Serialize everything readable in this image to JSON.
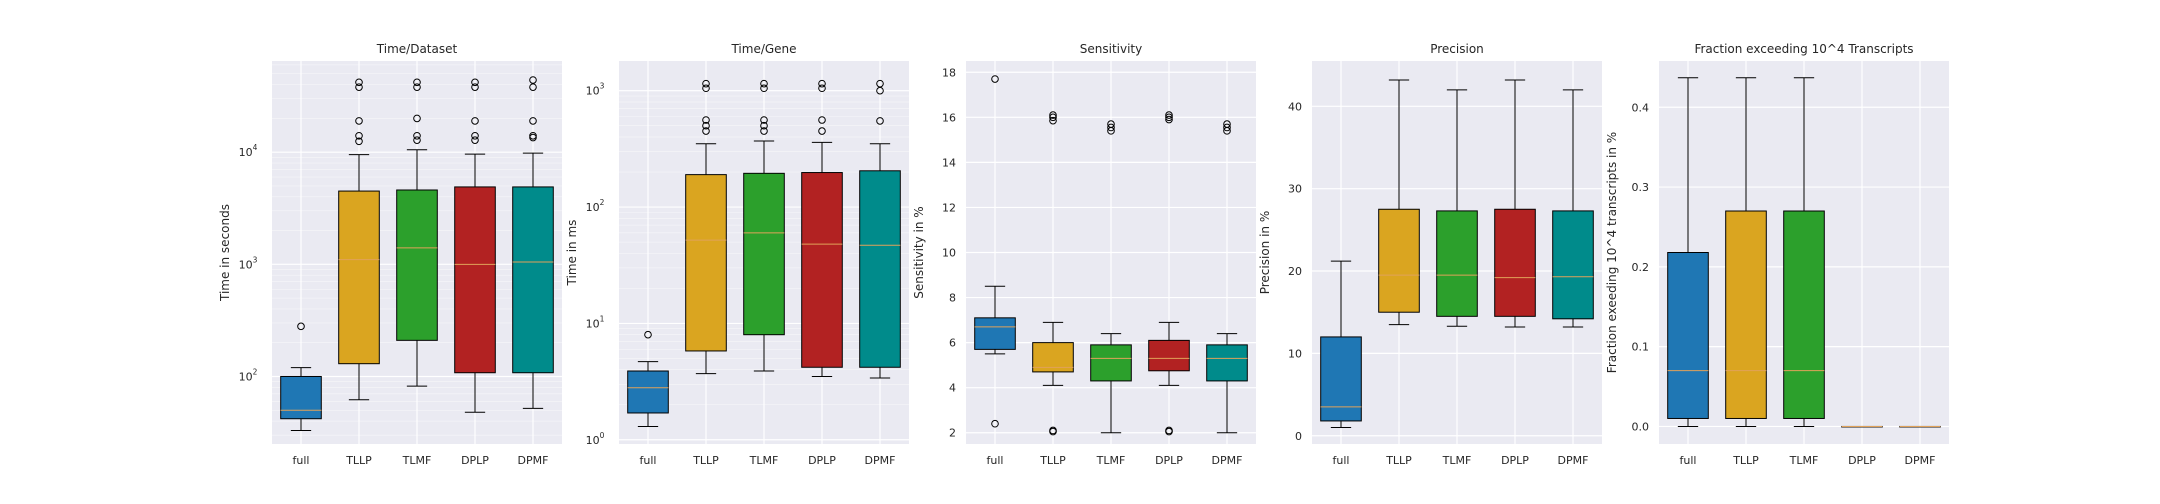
{
  "figure": {
    "background": "#ffffff",
    "plot_background": "#eaeaf2",
    "grid_color": "#ffffff",
    "median_color": "#e0a25a"
  },
  "chart_data": [
    {
      "type": "box",
      "title": "Time/Dataset",
      "xlabel": "",
      "ylabel": "Time in seconds",
      "yscale": "log",
      "ylim": [
        25,
        65000
      ],
      "grid": true,
      "categories": [
        "full",
        "TLLP",
        "TLMF",
        "DPLP",
        "DPMF"
      ],
      "colors": [
        "#1f77b4",
        "#daa520",
        "#2ca02c",
        "#b22222",
        "#008b8b"
      ],
      "yticks": [
        {
          "base": "10",
          "exp": "2",
          "value": 100
        },
        {
          "base": "10",
          "exp": "3",
          "value": 1000
        },
        {
          "base": "10",
          "exp": "4",
          "value": 10000
        }
      ],
      "boxes": [
        {
          "whisker_low": 33,
          "q1": 42,
          "median": 50,
          "q3": 100,
          "whisker_high": 120,
          "fliers": [
            280
          ]
        },
        {
          "whisker_low": 62,
          "q1": 130,
          "median": 1100,
          "q3": 4500,
          "whisker_high": 9500,
          "fliers": [
            12500,
            14000,
            19000,
            38000,
            42000
          ]
        },
        {
          "whisker_low": 82,
          "q1": 210,
          "median": 1400,
          "q3": 4600,
          "whisker_high": 10500,
          "fliers": [
            12800,
            14000,
            20000,
            38000,
            42000
          ]
        },
        {
          "whisker_low": 48,
          "q1": 108,
          "median": 1000,
          "q3": 4900,
          "whisker_high": 9600,
          "fliers": [
            12800,
            14000,
            19000,
            38000,
            42000
          ]
        },
        {
          "whisker_low": 52,
          "q1": 108,
          "median": 1050,
          "q3": 4900,
          "whisker_high": 9800,
          "fliers": [
            13500,
            14000,
            19000,
            38000,
            44000
          ]
        }
      ]
    },
    {
      "type": "box",
      "title": "Time/Gene",
      "xlabel": "",
      "ylabel": "Time in ms",
      "yscale": "log",
      "ylim": [
        0.92,
        1800
      ],
      "grid": true,
      "categories": [
        "full",
        "TLLP",
        "TLMF",
        "DPLP",
        "DPMF"
      ],
      "colors": [
        "#1f77b4",
        "#daa520",
        "#2ca02c",
        "#b22222",
        "#008b8b"
      ],
      "yticks": [
        {
          "base": "10",
          "exp": "0",
          "value": 1
        },
        {
          "base": "10",
          "exp": "1",
          "value": 10
        },
        {
          "base": "10",
          "exp": "2",
          "value": 100
        },
        {
          "base": "10",
          "exp": "3",
          "value": 1000
        }
      ],
      "boxes": [
        {
          "whisker_low": 1.3,
          "q1": 1.7,
          "median": 2.8,
          "q3": 3.9,
          "whisker_high": 4.7,
          "fliers": [
            8
          ]
        },
        {
          "whisker_low": 3.7,
          "q1": 5.8,
          "median": 52,
          "q3": 190,
          "whisker_high": 350,
          "fliers": [
            450,
            500,
            560,
            1050,
            1150
          ]
        },
        {
          "whisker_low": 3.9,
          "q1": 8.0,
          "median": 60,
          "q3": 195,
          "whisker_high": 370,
          "fliers": [
            450,
            500,
            560,
            1050,
            1150
          ]
        },
        {
          "whisker_low": 3.5,
          "q1": 4.2,
          "median": 48,
          "q3": 198,
          "whisker_high": 360,
          "fliers": [
            450,
            560,
            1050,
            1150
          ]
        },
        {
          "whisker_low": 3.4,
          "q1": 4.2,
          "median": 47,
          "q3": 205,
          "whisker_high": 350,
          "fliers": [
            550,
            1000,
            1150
          ]
        }
      ]
    },
    {
      "type": "box",
      "title": "Sensitivity",
      "xlabel": "",
      "ylabel": "Sensitivity in %",
      "yscale": "linear",
      "ylim": [
        1.5,
        18.5
      ],
      "grid": true,
      "categories": [
        "full",
        "TLLP",
        "TLMF",
        "DPLP",
        "DPMF"
      ],
      "colors": [
        "#1f77b4",
        "#daa520",
        "#2ca02c",
        "#b22222",
        "#008b8b"
      ],
      "yticks": [
        {
          "label": "2",
          "value": 2
        },
        {
          "label": "4",
          "value": 4
        },
        {
          "label": "6",
          "value": 6
        },
        {
          "label": "8",
          "value": 8
        },
        {
          "label": "10",
          "value": 10
        },
        {
          "label": "12",
          "value": 12
        },
        {
          "label": "14",
          "value": 14
        },
        {
          "label": "16",
          "value": 16
        },
        {
          "label": "18",
          "value": 18
        }
      ],
      "boxes": [
        {
          "whisker_low": 5.5,
          "q1": 5.7,
          "median": 6.7,
          "q3": 7.1,
          "whisker_high": 8.5,
          "fliers": [
            2.4,
            17.7
          ]
        },
        {
          "whisker_low": 4.1,
          "q1": 4.7,
          "median": 4.9,
          "q3": 6.0,
          "whisker_high": 6.9,
          "fliers": [
            2.05,
            2.1,
            15.85,
            16.0,
            16.1
          ]
        },
        {
          "whisker_low": 2.0,
          "q1": 4.3,
          "median": 5.3,
          "q3": 5.9,
          "whisker_high": 6.4,
          "fliers": [
            15.4,
            15.55,
            15.7
          ]
        },
        {
          "whisker_low": 4.1,
          "q1": 4.75,
          "median": 5.3,
          "q3": 6.1,
          "whisker_high": 6.9,
          "fliers": [
            2.05,
            2.1,
            15.9,
            16.0,
            16.1
          ]
        },
        {
          "whisker_low": 2.0,
          "q1": 4.3,
          "median": 5.3,
          "q3": 5.9,
          "whisker_high": 6.4,
          "fliers": [
            15.4,
            15.55,
            15.7
          ]
        }
      ]
    },
    {
      "type": "box",
      "title": "Precision",
      "xlabel": "",
      "ylabel": "Precision in %",
      "yscale": "linear",
      "ylim": [
        -1,
        45.5
      ],
      "grid": true,
      "categories": [
        "full",
        "TLLP",
        "TLMF",
        "DPLP",
        "DPMF"
      ],
      "colors": [
        "#1f77b4",
        "#daa520",
        "#2ca02c",
        "#b22222",
        "#008b8b"
      ],
      "yticks": [
        {
          "label": "0",
          "value": 0
        },
        {
          "label": "10",
          "value": 10
        },
        {
          "label": "20",
          "value": 20
        },
        {
          "label": "30",
          "value": 30
        },
        {
          "label": "40",
          "value": 40
        }
      ],
      "boxes": [
        {
          "whisker_low": 1.0,
          "q1": 1.8,
          "median": 3.5,
          "q3": 12.0,
          "whisker_high": 21.2,
          "fliers": []
        },
        {
          "whisker_low": 13.5,
          "q1": 15.0,
          "median": 19.5,
          "q3": 27.5,
          "whisker_high": 43.2,
          "fliers": []
        },
        {
          "whisker_low": 13.3,
          "q1": 14.5,
          "median": 19.5,
          "q3": 27.3,
          "whisker_high": 42.0,
          "fliers": []
        },
        {
          "whisker_low": 13.2,
          "q1": 14.5,
          "median": 19.2,
          "q3": 27.5,
          "whisker_high": 43.2,
          "fliers": []
        },
        {
          "whisker_low": 13.2,
          "q1": 14.2,
          "median": 19.3,
          "q3": 27.3,
          "whisker_high": 42.0,
          "fliers": []
        }
      ]
    },
    {
      "type": "box",
      "title": "Fraction exceeding 10^4 Transcripts",
      "xlabel": "",
      "ylabel": "Fraction exeeding 10^4 transcripts in %",
      "yscale": "linear",
      "ylim": [
        -0.022,
        0.458
      ],
      "grid": true,
      "categories": [
        "full",
        "TLLP",
        "TLMF",
        "DPLP",
        "DPMF"
      ],
      "colors": [
        "#1f77b4",
        "#daa520",
        "#2ca02c",
        "#b22222",
        "#008b8b"
      ],
      "yticks": [
        {
          "label": "0.0",
          "value": 0
        },
        {
          "label": "0.1",
          "value": 0.1
        },
        {
          "label": "0.2",
          "value": 0.2
        },
        {
          "label": "0.3",
          "value": 0.3
        },
        {
          "label": "0.4",
          "value": 0.4
        }
      ],
      "boxes": [
        {
          "whisker_low": 0,
          "q1": 0.01,
          "median": 0.07,
          "q3": 0.218,
          "whisker_high": 0.437,
          "fliers": []
        },
        {
          "whisker_low": 0,
          "q1": 0.01,
          "median": 0.07,
          "q3": 0.27,
          "whisker_high": 0.437,
          "fliers": []
        },
        {
          "whisker_low": 0,
          "q1": 0.01,
          "median": 0.07,
          "q3": 0.27,
          "whisker_high": 0.437,
          "fliers": []
        },
        {
          "whisker_low": 0,
          "q1": 0,
          "median": 0,
          "q3": 0,
          "whisker_high": 0,
          "fliers": []
        },
        {
          "whisker_low": 0,
          "q1": 0,
          "median": 0,
          "q3": 0,
          "whisker_high": 0,
          "fliers": []
        }
      ]
    }
  ]
}
